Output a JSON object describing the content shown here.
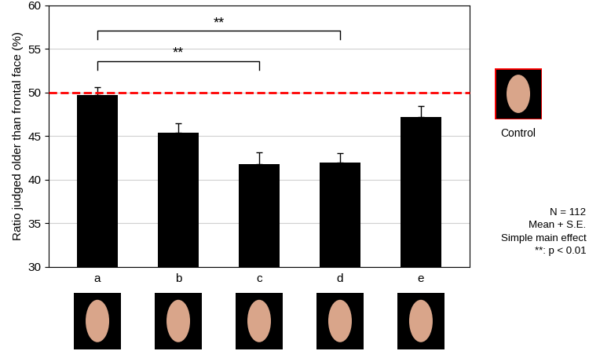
{
  "chart_data": {
    "type": "bar",
    "y_label": "Ratio judged older than frontal face (%)",
    "categories": [
      "a",
      "b",
      "c",
      "d",
      "e"
    ],
    "values": [
      49.7,
      45.4,
      41.8,
      42.0,
      47.2
    ],
    "errors": [
      0.9,
      1.1,
      1.3,
      1.0,
      1.2
    ],
    "color": "#000000",
    "ylim": [
      30,
      60
    ],
    "yticks": [
      30,
      35,
      40,
      45,
      50,
      55,
      60
    ],
    "grid": true,
    "reference_line": {
      "value": 50,
      "color": "#ff0000",
      "line_style": "dashed",
      "label": "Control"
    },
    "significance": [
      {
        "from": "a",
        "to": "c",
        "label": "**"
      },
      {
        "from": "a",
        "to": "d",
        "label": "**"
      }
    ],
    "notes": [
      "N = 112",
      "Mean + S.E.",
      "Simple main effect",
      "**: p < 0.01"
    ]
  }
}
